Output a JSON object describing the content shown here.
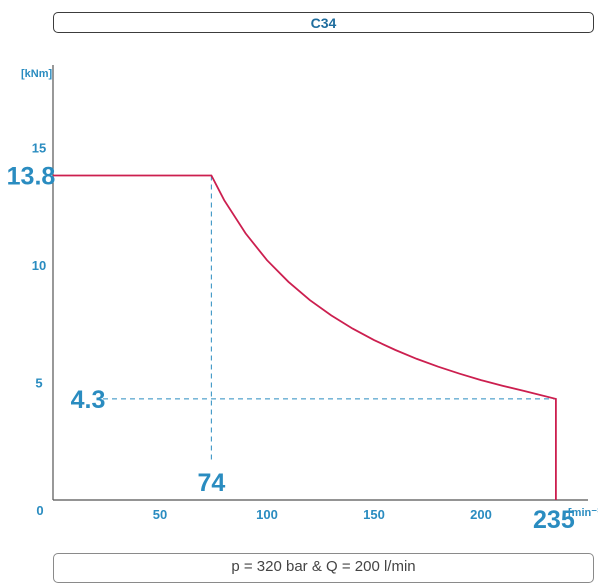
{
  "chart_data": {
    "type": "line",
    "title": "C34",
    "subtitle": "p = 320 bar & Q = 200 l/min",
    "xlabel": "[min⁻¹]",
    "ylabel": "[kNm]",
    "xlim": [
      0,
      250
    ],
    "ylim": [
      0,
      18.5
    ],
    "x_ticks": [
      50,
      100,
      150,
      200
    ],
    "y_ticks": [
      0,
      5,
      10,
      15
    ],
    "series": [
      {
        "color": "#cc1f4f",
        "points": [
          [
            0,
            13.8
          ],
          [
            74,
            13.8
          ],
          [
            80,
            12.75
          ],
          [
            90,
            11.34
          ],
          [
            100,
            10.2
          ],
          [
            110,
            9.28
          ],
          [
            120,
            8.5
          ],
          [
            130,
            7.85
          ],
          [
            140,
            7.29
          ],
          [
            150,
            6.8
          ],
          [
            160,
            6.38
          ],
          [
            170,
            6.0
          ],
          [
            180,
            5.67
          ],
          [
            190,
            5.37
          ],
          [
            200,
            5.1
          ],
          [
            210,
            4.86
          ],
          [
            220,
            4.64
          ],
          [
            235,
            4.3
          ],
          [
            235,
            0
          ]
        ]
      }
    ],
    "annotations": [
      {
        "axis": "x",
        "value": 74,
        "label": "74"
      },
      {
        "axis": "x",
        "value": 235,
        "label": "235"
      },
      {
        "axis": "y",
        "value": 13.8,
        "label": "13.8"
      },
      {
        "axis": "y",
        "value": 4.3,
        "label": "4.3"
      }
    ],
    "grid": false,
    "legend": "none",
    "colors": {
      "accent": "#2a8cc0",
      "line": "#cc1f4f",
      "axes": "#555555"
    }
  }
}
